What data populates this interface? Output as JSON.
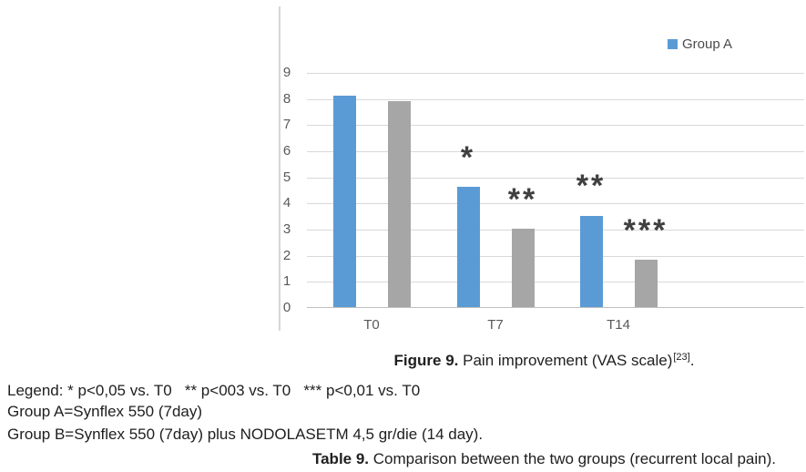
{
  "chart_data": {
    "type": "bar",
    "title": "",
    "xlabel": "",
    "ylabel": "",
    "categories": [
      "T0",
      "T7",
      "T14"
    ],
    "series": [
      {
        "name": "Group A",
        "color": "#5b9bd5",
        "values": [
          8.1,
          4.6,
          3.5
        ]
      },
      {
        "name": "Group B",
        "color": "#a6a6a6",
        "values": [
          7.9,
          3.0,
          1.8
        ]
      }
    ],
    "ylim": [
      0,
      9
    ],
    "ytick_step": 1,
    "grid": true,
    "legend_position": "top-right",
    "legend_visible_entries": [
      "Group A"
    ],
    "annotations": [
      {
        "text": "*",
        "category": "T7",
        "series_index": 0,
        "y": 5.9
      },
      {
        "text": "**",
        "category": "T7",
        "series_index": 1,
        "y": 4.3
      },
      {
        "text": "**",
        "category": "T14",
        "series_index": 0,
        "y": 4.8
      },
      {
        "text": "***",
        "category": "T14",
        "series_index": 1,
        "y": 3.1
      }
    ],
    "colors": {
      "gridline": "#d9d9d9",
      "axis_line": "#c0c0c0",
      "tick_label": "#595959",
      "annotation": "#404040"
    }
  },
  "legend_entry": {
    "label": "Group A"
  },
  "figure_caption": {
    "label": "Figure 9.",
    "text": "Pain improvement (VAS scale)",
    "reference": "[23]",
    "suffix": "."
  },
  "notes": {
    "legend_line": "Legend: * p<0,05 vs. T0   ** p<003 vs. T0   *** p<0,01 vs. T0",
    "group_a_line": "Group A=Synflex 550 (7day)",
    "group_b_line": "Group B=Synflex 550 (7day) plus NODOLASETM 4,5 gr/die (14 day)."
  },
  "table_caption": {
    "label": "Table 9.",
    "text": "Comparison between the two groups (recurrent local pain)."
  }
}
